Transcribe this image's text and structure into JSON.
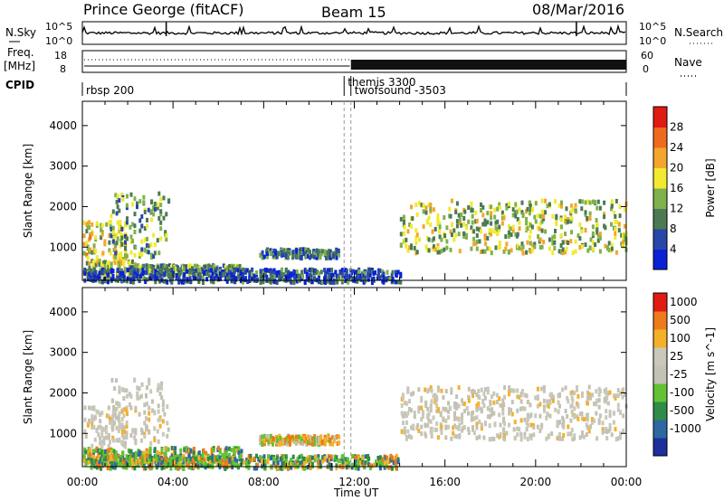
{
  "header": {
    "title": "Prince George (fitACF)",
    "beam": "Beam 15",
    "date": "08/Mar/2016"
  },
  "strip_labels": {
    "nsky": "N.Sky",
    "nsearch": "N.Search",
    "freq": "Freq.",
    "freq_unit": "[MHz]",
    "nave": "Nave",
    "cpid": "CPID"
  },
  "strip_ticks": {
    "noise_left": [
      "10^5",
      "10^0"
    ],
    "noise_right": [
      "10^5",
      "10^0"
    ],
    "freq_left": [
      "18",
      "8"
    ],
    "nave_right": [
      "60",
      "0"
    ]
  },
  "cpid_segments": [
    {
      "label": "rbsp 200",
      "start_h": 0.0
    },
    {
      "label": "themis 3300",
      "start_h": 11.55
    },
    {
      "label": "twofsound -3503",
      "start_h": 11.85
    }
  ],
  "chart_data": [
    {
      "type": "heatmap",
      "title": "",
      "xlabel": "",
      "ylabel": "Slant Range [km]",
      "x_range_hours": [
        0,
        24
      ],
      "ylim": [
        180,
        4600
      ],
      "yticks": [
        1000,
        2000,
        3000,
        4000
      ],
      "colorbar": {
        "label": "Power [dB]",
        "range": [
          0,
          32
        ],
        "ticks": [
          "4",
          "8",
          "12",
          "16",
          "20",
          "24",
          "28"
        ],
        "colors": [
          "#0a22d6",
          "#2847a8",
          "#4b7a52",
          "#7fb14c",
          "#f2ea2f",
          "#f3a62b",
          "#ef6a1e",
          "#e21b12"
        ]
      },
      "echo_regions": [
        {
          "t0": 0.0,
          "t1": 1.9,
          "r0": 700,
          "r1": 1700,
          "mean": 18
        },
        {
          "t0": 1.2,
          "t1": 3.8,
          "r0": 800,
          "r1": 2400,
          "mean": 12
        },
        {
          "t0": 0.0,
          "t1": 2.5,
          "r0": 300,
          "r1": 700,
          "mean": 16
        },
        {
          "t0": 2.0,
          "t1": 7.0,
          "r0": 380,
          "r1": 600,
          "mean": 12
        },
        {
          "t0": 7.8,
          "t1": 11.3,
          "r0": 780,
          "r1": 1000,
          "mean": 9
        },
        {
          "t0": 14.0,
          "t1": 24.0,
          "r0": 900,
          "r1": 2200,
          "mean": 15
        },
        {
          "t0": 0.0,
          "t1": 14.0,
          "r0": 180,
          "r1": 500,
          "mean": 6
        }
      ]
    },
    {
      "type": "heatmap",
      "title": "",
      "xlabel": "Time UT",
      "ylabel": "Slant Range [km]",
      "x_range_hours": [
        0,
        24
      ],
      "xticks": [
        "00:00",
        "04:00",
        "08:00",
        "12:00",
        "16:00",
        "20:00",
        "00:00"
      ],
      "ylim": [
        180,
        4600
      ],
      "yticks": [
        1000,
        2000,
        3000,
        4000
      ],
      "colorbar": {
        "label": "Velocity [m s^-1]",
        "ticks": [
          "1000",
          "500",
          "100",
          "25",
          "-25",
          "-100",
          "-500",
          "-1000"
        ],
        "colors": [
          "#1c2f9c",
          "#2d68a0",
          "#2e8b48",
          "#62c234",
          "#c3c2b5",
          "#c9c8bb",
          "#f4b128",
          "#ef7a1c",
          "#e21b12"
        ]
      },
      "echo_regions": [
        {
          "t0": 0.0,
          "t1": 1.9,
          "r0": 700,
          "r1": 1700,
          "class": "ground"
        },
        {
          "t0": 1.2,
          "t1": 3.8,
          "r0": 800,
          "r1": 2400,
          "class": "ground"
        },
        {
          "t0": 0.0,
          "t1": 7.0,
          "r0": 300,
          "r1": 700,
          "class": "ionospheric"
        },
        {
          "t0": 7.8,
          "t1": 11.3,
          "r0": 780,
          "r1": 1000,
          "class": "mixed"
        },
        {
          "t0": 14.0,
          "t1": 24.0,
          "r0": 900,
          "r1": 2200,
          "class": "ground"
        },
        {
          "t0": 0.0,
          "t1": 14.0,
          "r0": 180,
          "r1": 500,
          "class": "ionospheric"
        }
      ]
    }
  ]
}
